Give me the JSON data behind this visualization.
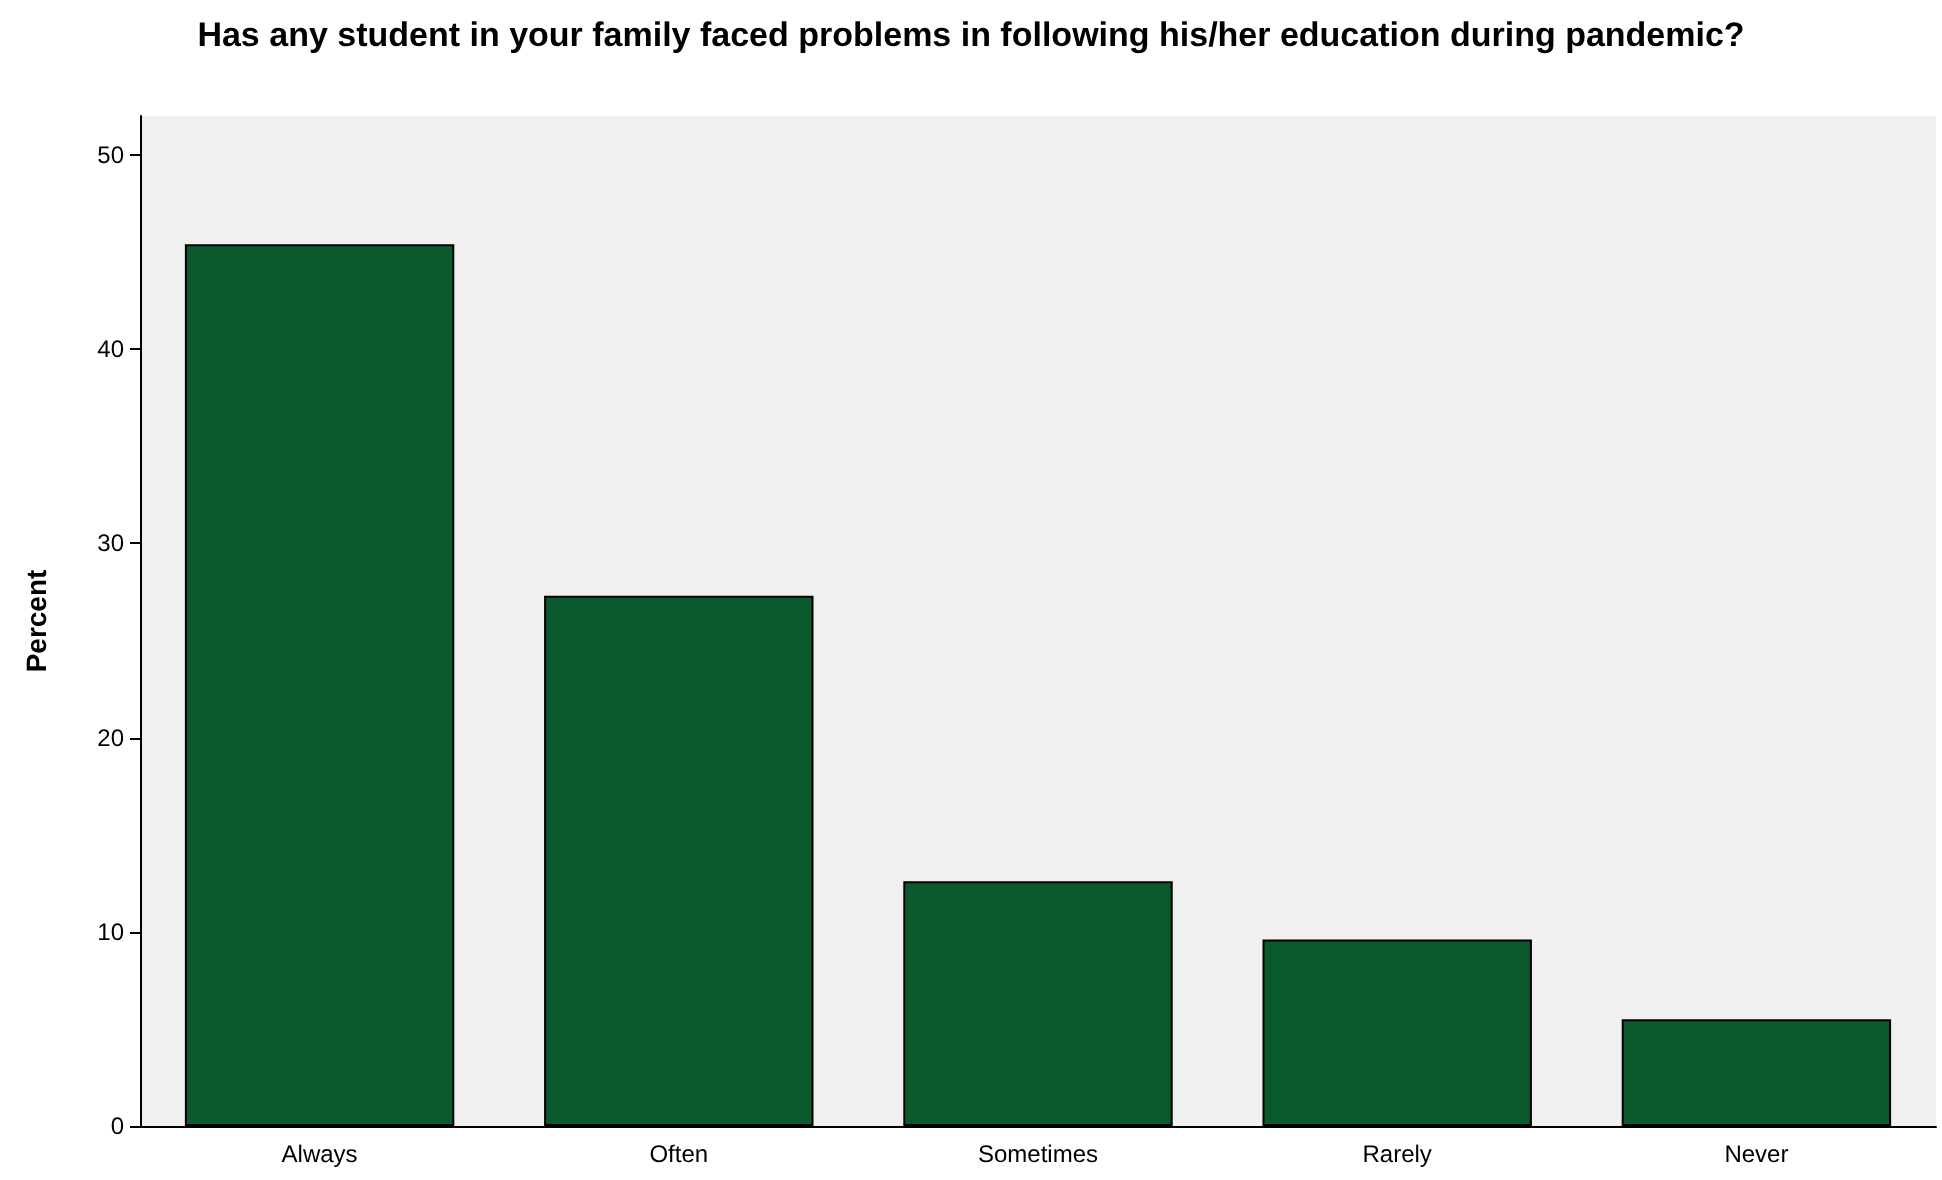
{
  "chart_data": {
    "type": "bar",
    "title": "Has any student in your family faced problems in following his/her education during pandemic?",
    "ylabel": "Percent",
    "categories": [
      "Always",
      "Often",
      "Sometimes",
      "Rarely",
      "Never"
    ],
    "values": [
      45.4,
      27.3,
      12.6,
      9.6,
      5.5
    ],
    "color": "#0b5a2e",
    "ylim": [
      0,
      52
    ],
    "yticks": [
      0,
      10,
      20,
      30,
      40,
      50
    ],
    "grid": false
  }
}
